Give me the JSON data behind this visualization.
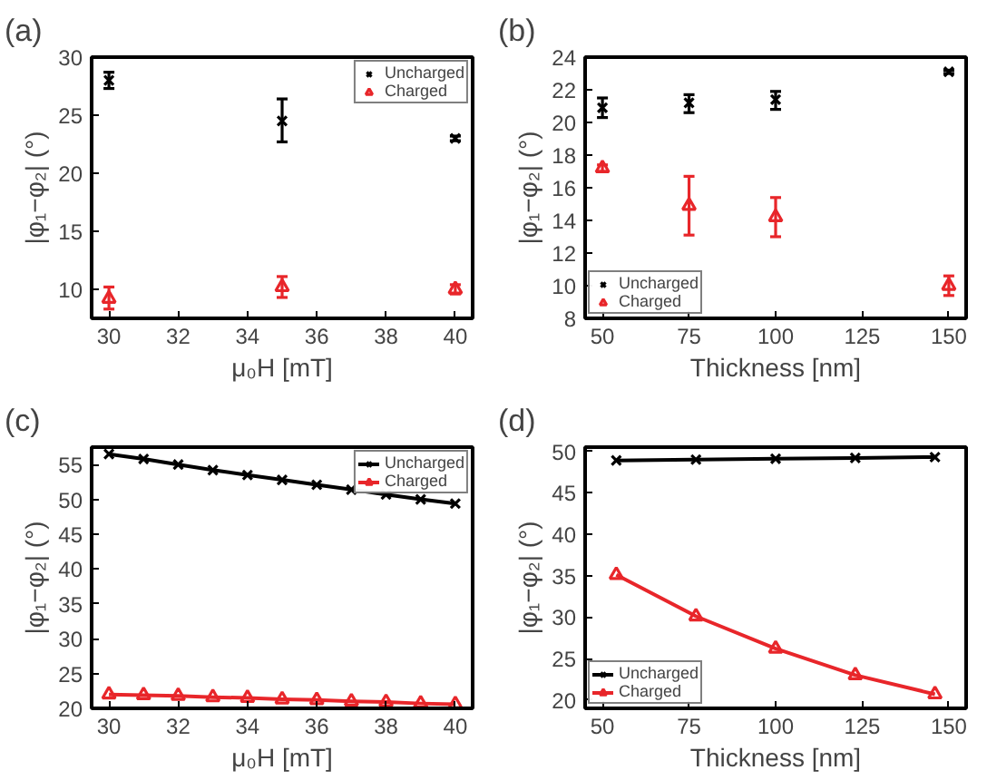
{
  "chart_data": [
    {
      "type": "scatter",
      "title": "(a)",
      "xlabel": "μ₀H [mT]",
      "ylabel": "|φ₁−φ₂| (°)",
      "x": [
        30,
        35,
        40
      ],
      "xlim": [
        29.5,
        40.5
      ],
      "xticks": [
        30,
        32,
        34,
        36,
        38,
        40
      ],
      "ylim": [
        7.5,
        30
      ],
      "yticks": [
        10,
        15,
        20,
        25,
        30
      ],
      "grid": false,
      "legend": "top right",
      "series": [
        {
          "name": "Uncharged",
          "color": "#000000",
          "marker": "cross",
          "values": [
            28.0,
            24.5,
            23.0
          ],
          "errors": [
            [
              27.3,
              28.7
            ],
            [
              22.7,
              26.4
            ],
            [
              22.8,
              23.2
            ]
          ]
        },
        {
          "name": "Charged",
          "color": "#e8262a",
          "marker": "triangle",
          "values": [
            9.2,
            10.2,
            10.0
          ],
          "errors": [
            [
              8.3,
              10.2
            ],
            [
              9.3,
              11.1
            ],
            [
              9.6,
              10.4
            ]
          ]
        }
      ]
    },
    {
      "type": "scatter",
      "title": "(b)",
      "xlabel": "Thickness [nm]",
      "ylabel": "|φ₁−φ₂| (°)",
      "x": [
        50,
        75,
        100,
        150
      ],
      "xlim": [
        45,
        155
      ],
      "xticks": [
        50,
        75,
        100,
        125,
        150
      ],
      "ylim": [
        8,
        24
      ],
      "yticks": [
        8,
        10,
        12,
        14,
        16,
        18,
        20,
        22,
        24
      ],
      "grid": false,
      "legend": "bottom left",
      "series": [
        {
          "name": "Uncharged",
          "color": "#000000",
          "marker": "cross",
          "values": [
            20.9,
            21.2,
            21.4,
            23.1
          ],
          "errors": [
            [
              20.3,
              21.5
            ],
            [
              20.6,
              21.7
            ],
            [
              20.8,
              21.9
            ],
            [
              23.0,
              23.2
            ]
          ]
        },
        {
          "name": "Charged",
          "color": "#e8262a",
          "marker": "triangle",
          "values": [
            17.2,
            14.9,
            14.2,
            10.0
          ],
          "errors": [
            [
              17.0,
              17.4
            ],
            [
              13.1,
              16.7
            ],
            [
              13.0,
              15.4
            ],
            [
              9.4,
              10.6
            ]
          ]
        }
      ]
    },
    {
      "type": "line",
      "title": "(c)",
      "xlabel": "μ₀H [mT]",
      "ylabel": "|φ₁−φ₂| (°)",
      "x": [
        30,
        31,
        32,
        33,
        34,
        35,
        36,
        37,
        38,
        39,
        40
      ],
      "xlim": [
        29.5,
        40.5
      ],
      "xticks": [
        30,
        32,
        34,
        36,
        38,
        40
      ],
      "ylim": [
        20,
        57.5
      ],
      "yticks": [
        20,
        25,
        30,
        35,
        40,
        45,
        50,
        55
      ],
      "grid": false,
      "legend": "top right",
      "line_style": "solid",
      "series": [
        {
          "name": "Uncharged",
          "color": "#000000",
          "marker": "cross",
          "values": [
            56.5,
            55.8,
            55.0,
            54.2,
            53.5,
            52.8,
            52.1,
            51.4,
            50.7,
            50.0,
            49.4
          ]
        },
        {
          "name": "Charged",
          "color": "#e8262a",
          "marker": "triangle",
          "values": [
            22.0,
            21.9,
            21.8,
            21.6,
            21.5,
            21.3,
            21.2,
            21.0,
            20.9,
            20.7,
            20.6
          ]
        }
      ]
    },
    {
      "type": "line",
      "title": "(d)",
      "xlabel": "Thickness [nm]",
      "ylabel": "|φ₁−φ₂| (°)",
      "x": [
        54,
        77,
        100,
        123,
        146
      ],
      "xlim": [
        45,
        155
      ],
      "xticks": [
        50,
        75,
        100,
        125,
        150
      ],
      "ylim": [
        19,
        50.5
      ],
      "yticks": [
        20,
        25,
        30,
        35,
        40,
        45,
        50
      ],
      "grid": false,
      "legend": "bottom left",
      "line_style": "solid",
      "series": [
        {
          "name": "Uncharged",
          "color": "#000000",
          "marker": "cross",
          "values": [
            48.9,
            49.0,
            49.1,
            49.2,
            49.3
          ]
        },
        {
          "name": "Charged",
          "color": "#e8262a",
          "marker": "triangle",
          "values": [
            35.1,
            30.1,
            26.2,
            23.0,
            20.7
          ]
        }
      ]
    }
  ]
}
